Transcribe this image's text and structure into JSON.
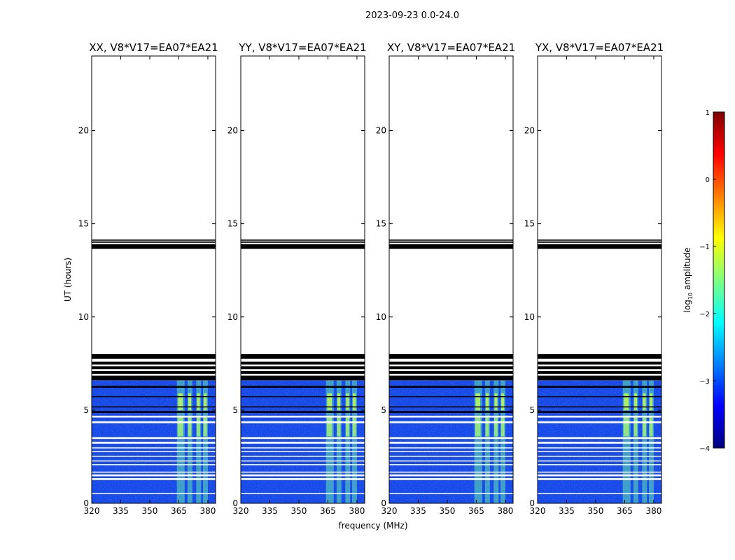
{
  "figure_title": "2023-09-23 0.0-24.0",
  "colormap": [
    "#00007f",
    "#0000ff",
    "#007fff",
    "#00ffff",
    "#7fff7f",
    "#ffff00",
    "#ff7f00",
    "#ff0000",
    "#7f0000"
  ],
  "flag_color": "#000000",
  "chart_data": [
    {
      "type": "heatmap",
      "title": "XX, V8*V17=EA07*EA21",
      "xlabel": "",
      "ylabel": "UT (hours)",
      "xlim": [
        320,
        384
      ],
      "ylim": [
        0,
        24
      ],
      "xticks": [
        "320",
        "335",
        "350",
        "365",
        "380"
      ],
      "yticks": [
        "0",
        "5",
        "10",
        "15",
        "20"
      ],
      "bright_bands": [
        [
          364,
          368
        ],
        [
          369.5,
          372
        ],
        [
          374,
          376.5
        ],
        [
          377.5,
          380
        ]
      ]
    },
    {
      "type": "heatmap",
      "title": "YY, V8*V17=EA07*EA21",
      "xlabel": "frequency (MHz)",
      "ylabel": "",
      "xlim": [
        320,
        384
      ],
      "ylim": [
        0,
        24
      ],
      "xticks": [
        "320",
        "335",
        "350",
        "365",
        "380"
      ],
      "yticks": [
        "0",
        "5",
        "10",
        "15",
        "20"
      ],
      "bright_bands": [
        [
          364,
          368
        ],
        [
          369.5,
          372
        ],
        [
          374,
          376.5
        ],
        [
          377.5,
          380
        ]
      ]
    },
    {
      "type": "heatmap",
      "title": "XY, V8*V17=EA07*EA21",
      "xlabel": "",
      "ylabel": "",
      "xlim": [
        320,
        384
      ],
      "ylim": [
        0,
        24
      ],
      "xticks": [
        "320",
        "335",
        "350",
        "365",
        "380"
      ],
      "yticks": [
        "0",
        "5",
        "10",
        "15",
        "20"
      ],
      "bright_bands": [
        [
          364,
          368
        ],
        [
          369.5,
          372
        ],
        [
          374,
          376.5
        ],
        [
          377.5,
          380
        ]
      ]
    },
    {
      "type": "heatmap",
      "title": "YX, V8*V17=EA07*EA21",
      "xlabel": "",
      "ylabel": "",
      "xlim": [
        320,
        384
      ],
      "ylim": [
        0,
        24
      ],
      "xticks": [
        "320",
        "335",
        "350",
        "365",
        "380"
      ],
      "yticks": [
        "0",
        "5",
        "10",
        "15",
        "20"
      ],
      "bright_bands": [
        [
          364,
          368
        ],
        [
          369.5,
          372
        ],
        [
          374,
          376.5
        ],
        [
          377.5,
          380
        ]
      ]
    }
  ],
  "data_rows_ut": [
    0.0,
    6.6
  ],
  "flagged_black_rows_ut": [
    [
      13.65,
      13.9
    ],
    [
      13.98,
      14.05
    ],
    [
      14.1,
      14.15
    ],
    [
      7.75,
      8.0
    ],
    [
      7.45,
      7.6
    ],
    [
      7.2,
      7.35
    ],
    [
      6.95,
      7.1
    ],
    [
      6.6,
      6.85
    ],
    [
      6.2,
      6.3
    ],
    [
      5.7,
      5.75
    ],
    [
      5.15,
      5.2
    ],
    [
      4.85,
      4.95
    ]
  ],
  "white_gap_rows_ut": [
    [
      4.6,
      4.7
    ],
    [
      4.3,
      4.4
    ],
    [
      3.45,
      3.55
    ],
    [
      3.2,
      3.3
    ],
    [
      2.95,
      3.0
    ],
    [
      2.75,
      2.8
    ],
    [
      2.5,
      2.55
    ],
    [
      2.25,
      2.3
    ],
    [
      2.05,
      2.1
    ],
    [
      1.65,
      1.7
    ],
    [
      1.45,
      1.55
    ],
    [
      1.25,
      1.35
    ],
    [
      0.5,
      0.55
    ]
  ],
  "colorbar": {
    "label": "log10 amplitude",
    "label_main": "log",
    "label_sub": "10",
    "label_rest": " amplitude",
    "min": -4,
    "max": 1,
    "ticks": [
      "1",
      "0",
      "−1",
      "−2",
      "−3",
      "−4"
    ]
  }
}
